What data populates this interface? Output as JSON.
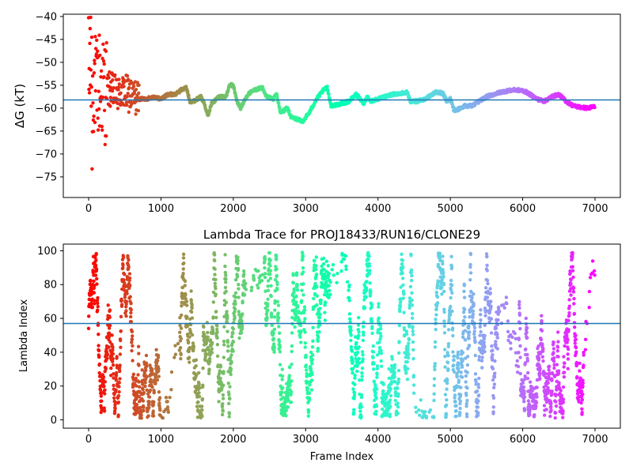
{
  "chart_data": [
    {
      "type": "scatter",
      "title": "",
      "xlabel": "",
      "ylabel": "ΔG (kT)",
      "xlim": [
        -350,
        7350
      ],
      "ylim": [
        -79.5,
        -39.5
      ],
      "xticks": [
        0,
        1000,
        2000,
        3000,
        4000,
        5000,
        6000,
        7000
      ],
      "yticks": [
        -75,
        -70,
        -65,
        -60,
        -55,
        -50,
        -45,
        -40
      ],
      "hline": -58.2,
      "colormap": "rainbow",
      "point_count": 7000,
      "grid": false,
      "trace": [
        [
          0,
          -58
        ],
        [
          25,
          -45
        ],
        [
          50,
          -60
        ],
        [
          75,
          -52
        ],
        [
          100,
          -57
        ],
        [
          150,
          -54
        ],
        [
          200,
          -56
        ],
        [
          300,
          -56
        ],
        [
          400,
          -57
        ],
        [
          500,
          -56.5
        ],
        [
          600,
          -57.5
        ],
        [
          700,
          -58
        ],
        [
          800,
          -58
        ],
        [
          900,
          -57.5
        ],
        [
          1000,
          -58
        ],
        [
          1100,
          -57
        ],
        [
          1200,
          -57
        ],
        [
          1280,
          -56
        ],
        [
          1350,
          -55.5
        ],
        [
          1400,
          -58.5
        ],
        [
          1450,
          -58.5
        ],
        [
          1550,
          -57.5
        ],
        [
          1600,
          -59
        ],
        [
          1650,
          -61.5
        ],
        [
          1700,
          -59
        ],
        [
          1800,
          -57.5
        ],
        [
          1900,
          -57.5
        ],
        [
          1950,
          -55
        ],
        [
          2000,
          -55
        ],
        [
          2050,
          -58.5
        ],
        [
          2100,
          -60
        ],
        [
          2200,
          -57
        ],
        [
          2300,
          -56
        ],
        [
          2400,
          -55.5
        ],
        [
          2450,
          -57.5
        ],
        [
          2550,
          -58
        ],
        [
          2600,
          -57
        ],
        [
          2650,
          -61
        ],
        [
          2700,
          -60.5
        ],
        [
          2750,
          -60
        ],
        [
          2800,
          -62
        ],
        [
          2900,
          -62.5
        ],
        [
          2950,
          -63
        ],
        [
          3050,
          -61
        ],
        [
          3150,
          -58
        ],
        [
          3250,
          -56
        ],
        [
          3300,
          -55.5
        ],
        [
          3350,
          -59.5
        ],
        [
          3500,
          -59
        ],
        [
          3600,
          -58.5
        ],
        [
          3700,
          -57
        ],
        [
          3800,
          -59
        ],
        [
          3850,
          -57.5
        ],
        [
          3900,
          -58.5
        ],
        [
          4000,
          -58
        ],
        [
          4100,
          -57.5
        ],
        [
          4200,
          -57
        ],
        [
          4300,
          -56.8
        ],
        [
          4400,
          -56.5
        ],
        [
          4450,
          -58.5
        ],
        [
          4550,
          -58.5
        ],
        [
          4650,
          -58
        ],
        [
          4750,
          -57
        ],
        [
          4800,
          -56.5
        ],
        [
          4900,
          -56.8
        ],
        [
          4950,
          -58.5
        ],
        [
          5000,
          -58
        ],
        [
          5050,
          -60.5
        ],
        [
          5100,
          -60.3
        ],
        [
          5200,
          -59.5
        ],
        [
          5300,
          -59.5
        ],
        [
          5400,
          -58.5
        ],
        [
          5500,
          -57.5
        ],
        [
          5600,
          -57
        ],
        [
          5700,
          -56.5
        ],
        [
          5800,
          -56.2
        ],
        [
          5900,
          -56
        ],
        [
          6000,
          -56.2
        ],
        [
          6050,
          -56.5
        ],
        [
          6100,
          -57
        ],
        [
          6200,
          -58
        ],
        [
          6300,
          -58.5
        ],
        [
          6400,
          -57.5
        ],
        [
          6500,
          -57
        ],
        [
          6600,
          -58.5
        ],
        [
          6700,
          -59.5
        ],
        [
          6800,
          -59.8
        ],
        [
          6900,
          -60
        ],
        [
          7000,
          -59.6
        ]
      ]
    },
    {
      "type": "scatter",
      "title": "Lambda Trace for PROJ18433/RUN16/CLONE29",
      "xlabel": "Frame Index",
      "ylabel": "Lambda Index",
      "xlim": [
        -350,
        7350
      ],
      "ylim": [
        -4.95,
        103.95
      ],
      "xticks": [
        0,
        1000,
        2000,
        3000,
        4000,
        5000,
        6000,
        7000
      ],
      "yticks": [
        0,
        20,
        40,
        60,
        80,
        100
      ],
      "hline": 57,
      "colormap": "rainbow",
      "lambda_range": [
        0,
        99
      ],
      "point_count": 7000,
      "grid": false
    }
  ]
}
